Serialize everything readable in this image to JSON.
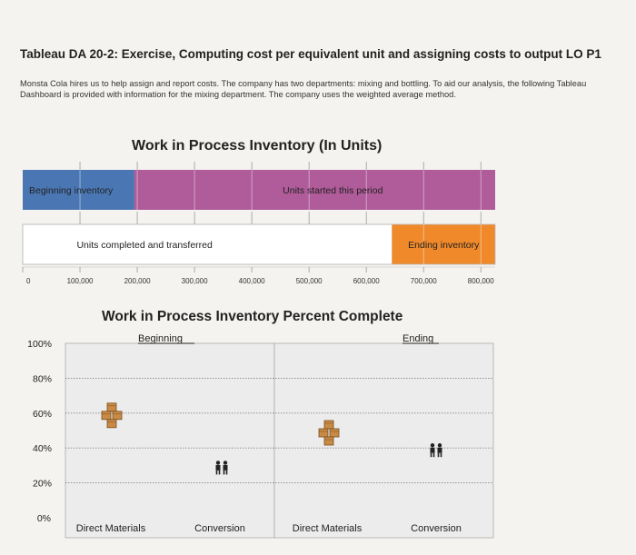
{
  "header": {
    "title": "Tableau DA 20-2: Exercise, Computing cost per equivalent unit and assigning costs to output LO P1",
    "intro": "Monsta Cola hires us to help assign and report costs. The company has two departments: mixing and bottling. To aid our analysis, the following Tableau Dashboard is provided with information for the mixing department. The company uses the weighted average method."
  },
  "colors": {
    "beginning": "#4a77b4",
    "started": "#b05b9a",
    "ending": "#f0892a",
    "completed": "#ffffff"
  },
  "icons": {
    "direct_materials": "boxes-icon",
    "conversion": "workers-icon"
  },
  "chart_data": [
    {
      "type": "bar",
      "title": "Work in Process Inventory (In Units)",
      "orientation": "horizontal",
      "xlim": [
        0,
        825000
      ],
      "ticks": [
        0,
        100000,
        200000,
        300000,
        400000,
        500000,
        600000,
        700000,
        800000
      ],
      "tick_labels": [
        "0",
        "100,000",
        "200,000",
        "300,000",
        "400,000",
        "500,000",
        "600,000",
        "700,000",
        "800,000"
      ],
      "rows": [
        {
          "segments": [
            {
              "label": "Beginning inventory",
              "start": 0,
              "end": 195000,
              "color": "#4a77b4"
            },
            {
              "label": "Units started this period",
              "start": 195000,
              "end": 825000,
              "color": "#b05b9a"
            }
          ]
        },
        {
          "segments": [
            {
              "label": "Units completed and transferred",
              "start": 0,
              "end": 645000,
              "color": "#ffffff"
            },
            {
              "label": "Ending inventory",
              "start": 645000,
              "end": 825000,
              "color": "#f0892a"
            }
          ]
        }
      ]
    },
    {
      "type": "scatter",
      "title": "Work in Process Inventory Percent Complete",
      "ylim": [
        0,
        100
      ],
      "y_ticks": [
        0,
        20,
        40,
        60,
        80,
        100
      ],
      "y_tick_labels": [
        "0%",
        "20%",
        "40%",
        "60%",
        "80%",
        "100%"
      ],
      "grid": true,
      "groups": [
        {
          "name": "Beginning",
          "points": [
            {
              "category": "Direct Materials",
              "value": 60,
              "icon": "boxes-icon"
            },
            {
              "category": "Conversion",
              "value": 30,
              "icon": "workers-icon"
            }
          ]
        },
        {
          "name": "Ending",
          "points": [
            {
              "category": "Direct Materials",
              "value": 50,
              "icon": "boxes-icon"
            },
            {
              "category": "Conversion",
              "value": 40,
              "icon": "workers-icon"
            }
          ]
        }
      ]
    }
  ]
}
